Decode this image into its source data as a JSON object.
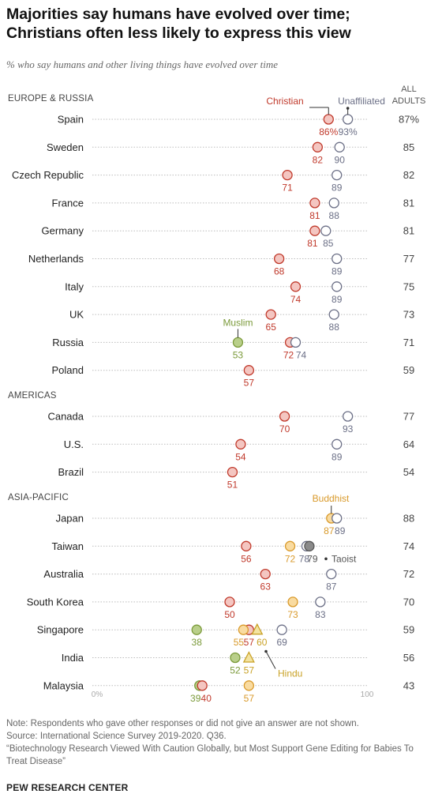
{
  "title": "Majorities say humans have evolved over time; Christians often less likely to express this view",
  "subtitle": "% who say humans and other living things have evolved over time",
  "notes": [
    "Note: Respondents who gave other responses or did not give an answer are not shown.",
    "Source: International Science Survey 2019-2020. Q36.",
    "“Biotechnology Research Viewed With Caution Globally, but Most Support Gene Editing for Babies To Treat Disease”"
  ],
  "brand": "PEW RESEARCH CENTER",
  "colors": {
    "Christian": "#c0392b",
    "Unaffiliated": "#6b6f86",
    "Muslim": "#7b9a3a",
    "Buddhist": "#d99a2b",
    "Taoist": "#555555",
    "Hindu": "#c9a227"
  },
  "chart_data": {
    "type": "scatter",
    "x_range": [
      0,
      100
    ],
    "x_ticks": [
      "0%",
      "100"
    ],
    "all_adults_header": "ALL ADULTS",
    "series_labels": {
      "Christian": "Christian",
      "Unaffiliated": "Unaffiliated",
      "Muslim": "Muslim",
      "Buddhist": "Buddhist",
      "Taoist": "Taoist",
      "Hindu": "Hindu"
    },
    "regions": [
      {
        "name": "EUROPE & RUSSIA",
        "countries": [
          {
            "name": "Spain",
            "all": "87%",
            "values": {
              "Christian": {
                "v": 86,
                "label": "86%"
              },
              "Unaffiliated": {
                "v": 93,
                "label": "93%"
              }
            }
          },
          {
            "name": "Sweden",
            "all": "85",
            "values": {
              "Christian": {
                "v": 82,
                "label": "82"
              },
              "Unaffiliated": {
                "v": 90,
                "label": "90"
              }
            }
          },
          {
            "name": "Czech Republic",
            "all": "82",
            "values": {
              "Christian": {
                "v": 71,
                "label": "71"
              },
              "Unaffiliated": {
                "v": 89,
                "label": "89"
              }
            }
          },
          {
            "name": "France",
            "all": "81",
            "values": {
              "Christian": {
                "v": 81,
                "label": "81"
              },
              "Unaffiliated": {
                "v": 88,
                "label": "88"
              }
            }
          },
          {
            "name": "Germany",
            "all": "81",
            "values": {
              "Christian": {
                "v": 81,
                "label": "81"
              },
              "Unaffiliated": {
                "v": 85,
                "label": "85"
              }
            }
          },
          {
            "name": "Netherlands",
            "all": "77",
            "values": {
              "Christian": {
                "v": 68,
                "label": "68"
              },
              "Unaffiliated": {
                "v": 89,
                "label": "89"
              }
            }
          },
          {
            "name": "Italy",
            "all": "75",
            "values": {
              "Christian": {
                "v": 74,
                "label": "74"
              },
              "Unaffiliated": {
                "v": 89,
                "label": "89"
              }
            }
          },
          {
            "name": "UK",
            "all": "73",
            "values": {
              "Christian": {
                "v": 65,
                "label": "65"
              },
              "Unaffiliated": {
                "v": 88,
                "label": "88"
              }
            }
          },
          {
            "name": "Russia",
            "all": "71",
            "values": {
              "Muslim": {
                "v": 53,
                "label": "53"
              },
              "Christian": {
                "v": 72,
                "label": "72"
              },
              "Unaffiliated": {
                "v": 74,
                "label": "74"
              }
            }
          },
          {
            "name": "Poland",
            "all": "59",
            "values": {
              "Christian": {
                "v": 57,
                "label": "57"
              }
            }
          }
        ]
      },
      {
        "name": "AMERICAS",
        "countries": [
          {
            "name": "Canada",
            "all": "77",
            "values": {
              "Christian": {
                "v": 70,
                "label": "70"
              },
              "Unaffiliated": {
                "v": 93,
                "label": "93"
              }
            }
          },
          {
            "name": "U.S.",
            "all": "64",
            "values": {
              "Christian": {
                "v": 54,
                "label": "54"
              },
              "Unaffiliated": {
                "v": 89,
                "label": "89"
              }
            }
          },
          {
            "name": "Brazil",
            "all": "54",
            "values": {
              "Christian": {
                "v": 51,
                "label": "51"
              }
            }
          }
        ]
      },
      {
        "name": "ASIA-PACIFIC",
        "countries": [
          {
            "name": "Japan",
            "all": "88",
            "values": {
              "Buddhist": {
                "v": 87,
                "label": "87"
              },
              "Unaffiliated": {
                "v": 89,
                "label": "89"
              }
            }
          },
          {
            "name": "Taiwan",
            "all": "74",
            "values": {
              "Christian": {
                "v": 56,
                "label": "56"
              },
              "Buddhist": {
                "v": 72,
                "label": "72"
              },
              "Unaffiliated": {
                "v": 78,
                "label": "78"
              },
              "Taoist": {
                "v": 79,
                "label": "79"
              }
            }
          },
          {
            "name": "Australia",
            "all": "72",
            "values": {
              "Christian": {
                "v": 63,
                "label": "63"
              },
              "Unaffiliated": {
                "v": 87,
                "label": "87"
              }
            }
          },
          {
            "name": "South Korea",
            "all": "70",
            "values": {
              "Christian": {
                "v": 50,
                "label": "50"
              },
              "Buddhist": {
                "v": 73,
                "label": "73"
              },
              "Unaffiliated": {
                "v": 83,
                "label": "83"
              }
            }
          },
          {
            "name": "Singapore",
            "all": "59",
            "values": {
              "Muslim": {
                "v": 38,
                "label": "38"
              },
              "Buddhist": {
                "v": 55,
                "label": "55"
              },
              "Christian": {
                "v": 57,
                "label": "57"
              },
              "Hindu": {
                "v": 60,
                "label": "60"
              },
              "Unaffiliated": {
                "v": 69,
                "label": "69"
              }
            }
          },
          {
            "name": "India",
            "all": "56",
            "values": {
              "Muslim": {
                "v": 52,
                "label": "52"
              },
              "Hindu": {
                "v": 57,
                "label": "57"
              }
            }
          },
          {
            "name": "Malaysia",
            "all": "43",
            "values": {
              "Muslim": {
                "v": 39,
                "label": "39"
              },
              "Christian": {
                "v": 40,
                "label": "40"
              },
              "Buddhist": {
                "v": 57,
                "label": "57"
              }
            }
          }
        ]
      }
    ]
  }
}
